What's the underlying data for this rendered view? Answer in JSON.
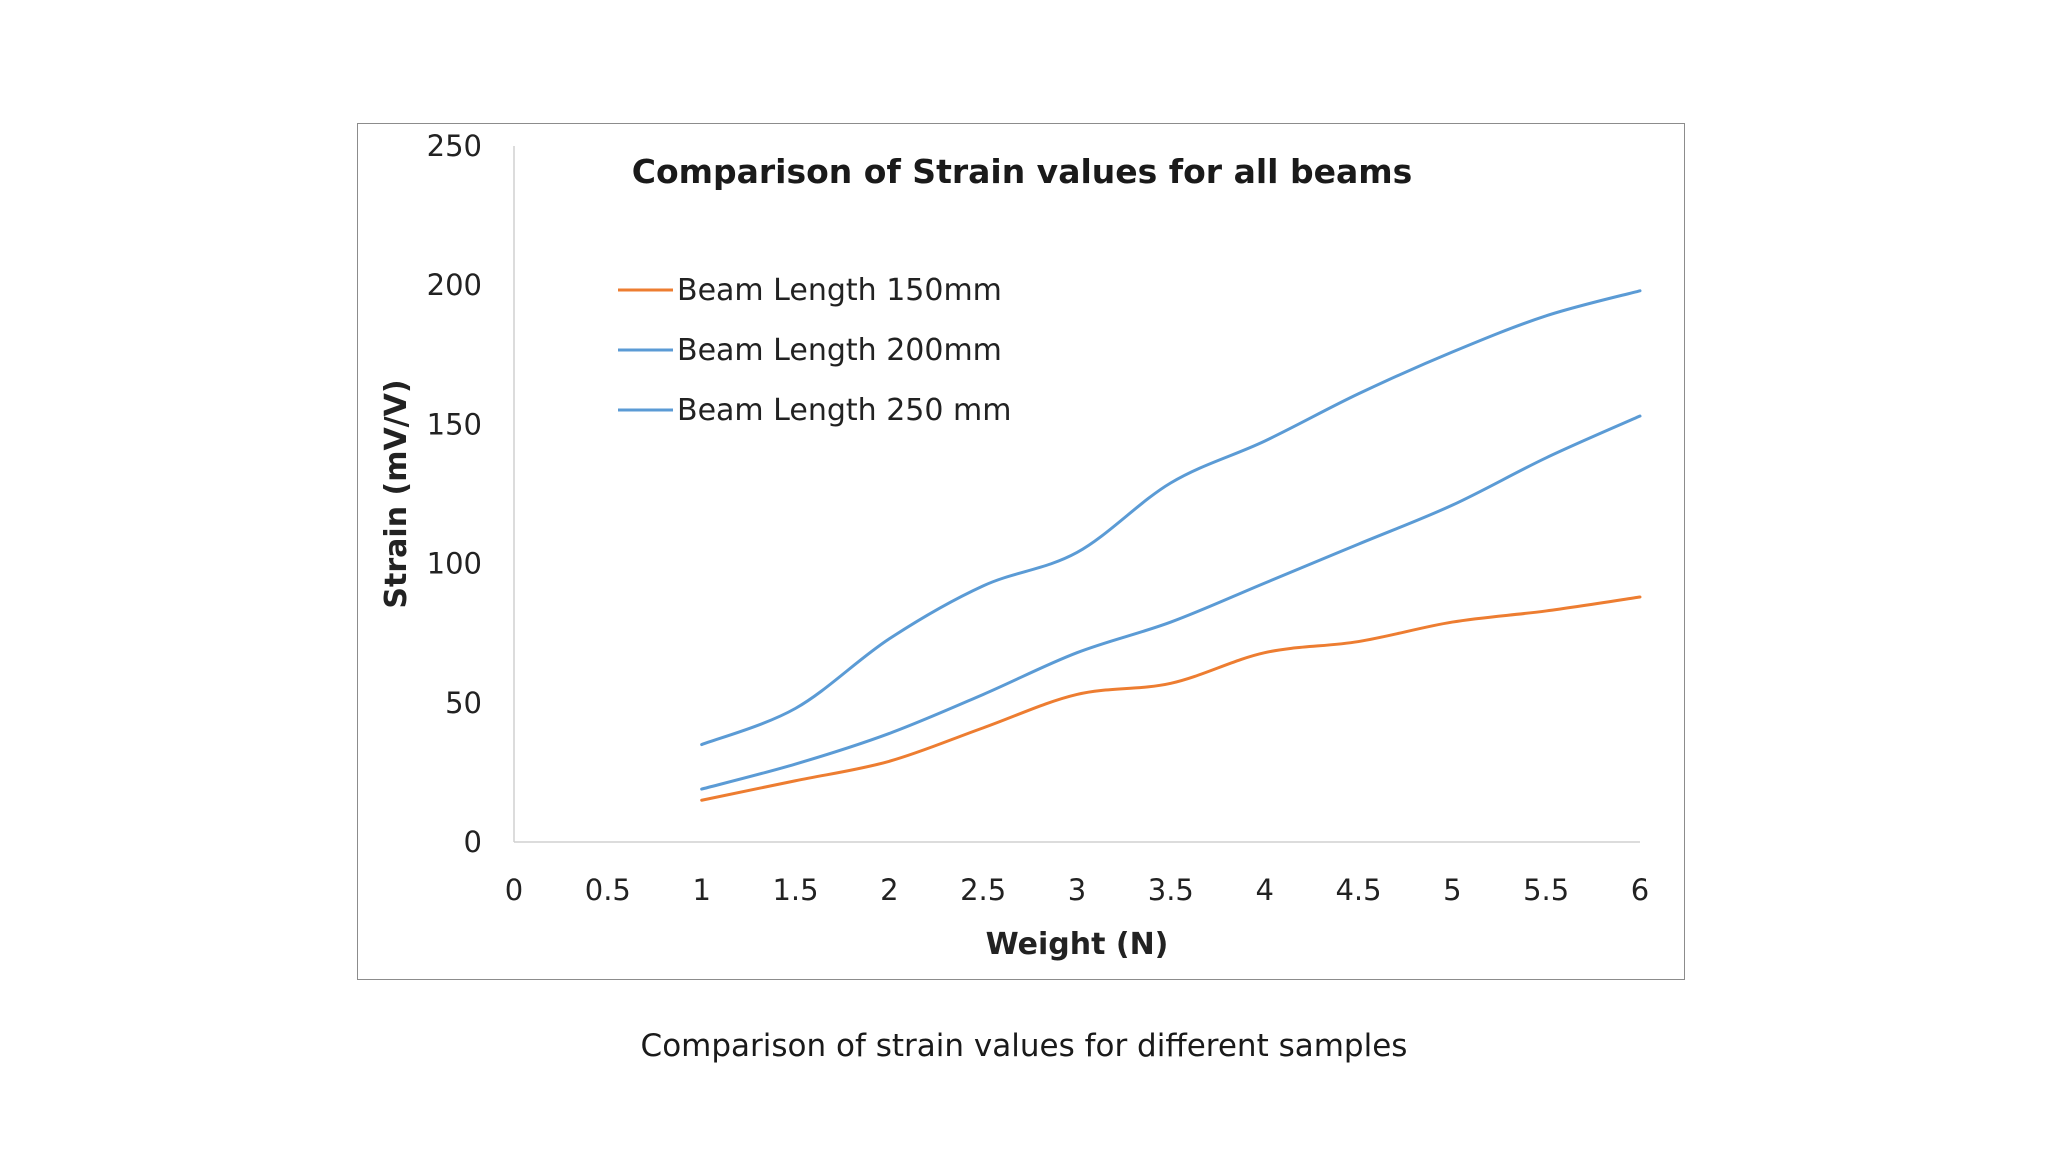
{
  "caption": "Comparison of strain values for different samples",
  "chart_data": {
    "type": "line",
    "title": "Comparison of Strain values for all beams",
    "xlabel": "Weight (N)",
    "ylabel": "Strain (mV/V)",
    "xlim": [
      0,
      6
    ],
    "ylim": [
      0,
      250
    ],
    "x_ticks": [
      "0",
      "0.5",
      "1",
      "1.5",
      "2",
      "2.5",
      "3",
      "3.5",
      "4",
      "4.5",
      "5",
      "5.5",
      "6"
    ],
    "y_ticks": [
      "0",
      "50",
      "100",
      "150",
      "200",
      "250"
    ],
    "grid": false,
    "legend_position": "top-left",
    "smooth": true,
    "x": [
      1,
      1.5,
      2,
      2.5,
      3,
      3.5,
      4,
      4.5,
      5,
      5.5,
      6
    ],
    "series": [
      {
        "name": "Beam Length 150mm",
        "color": "#ED7D31",
        "values": [
          15,
          22,
          29,
          41,
          53,
          57,
          68,
          72,
          79,
          83,
          88
        ]
      },
      {
        "name": "Beam Length 200mm",
        "color": "#5B9BD5",
        "values": [
          19,
          28,
          39,
          53,
          68,
          79,
          93,
          107,
          121,
          138,
          153
        ]
      },
      {
        "name": "Beam Length 250 mm",
        "color": "#5B9BD5",
        "values": [
          35,
          48,
          73,
          92,
          104,
          129,
          144,
          161,
          176,
          189,
          198
        ]
      }
    ]
  }
}
